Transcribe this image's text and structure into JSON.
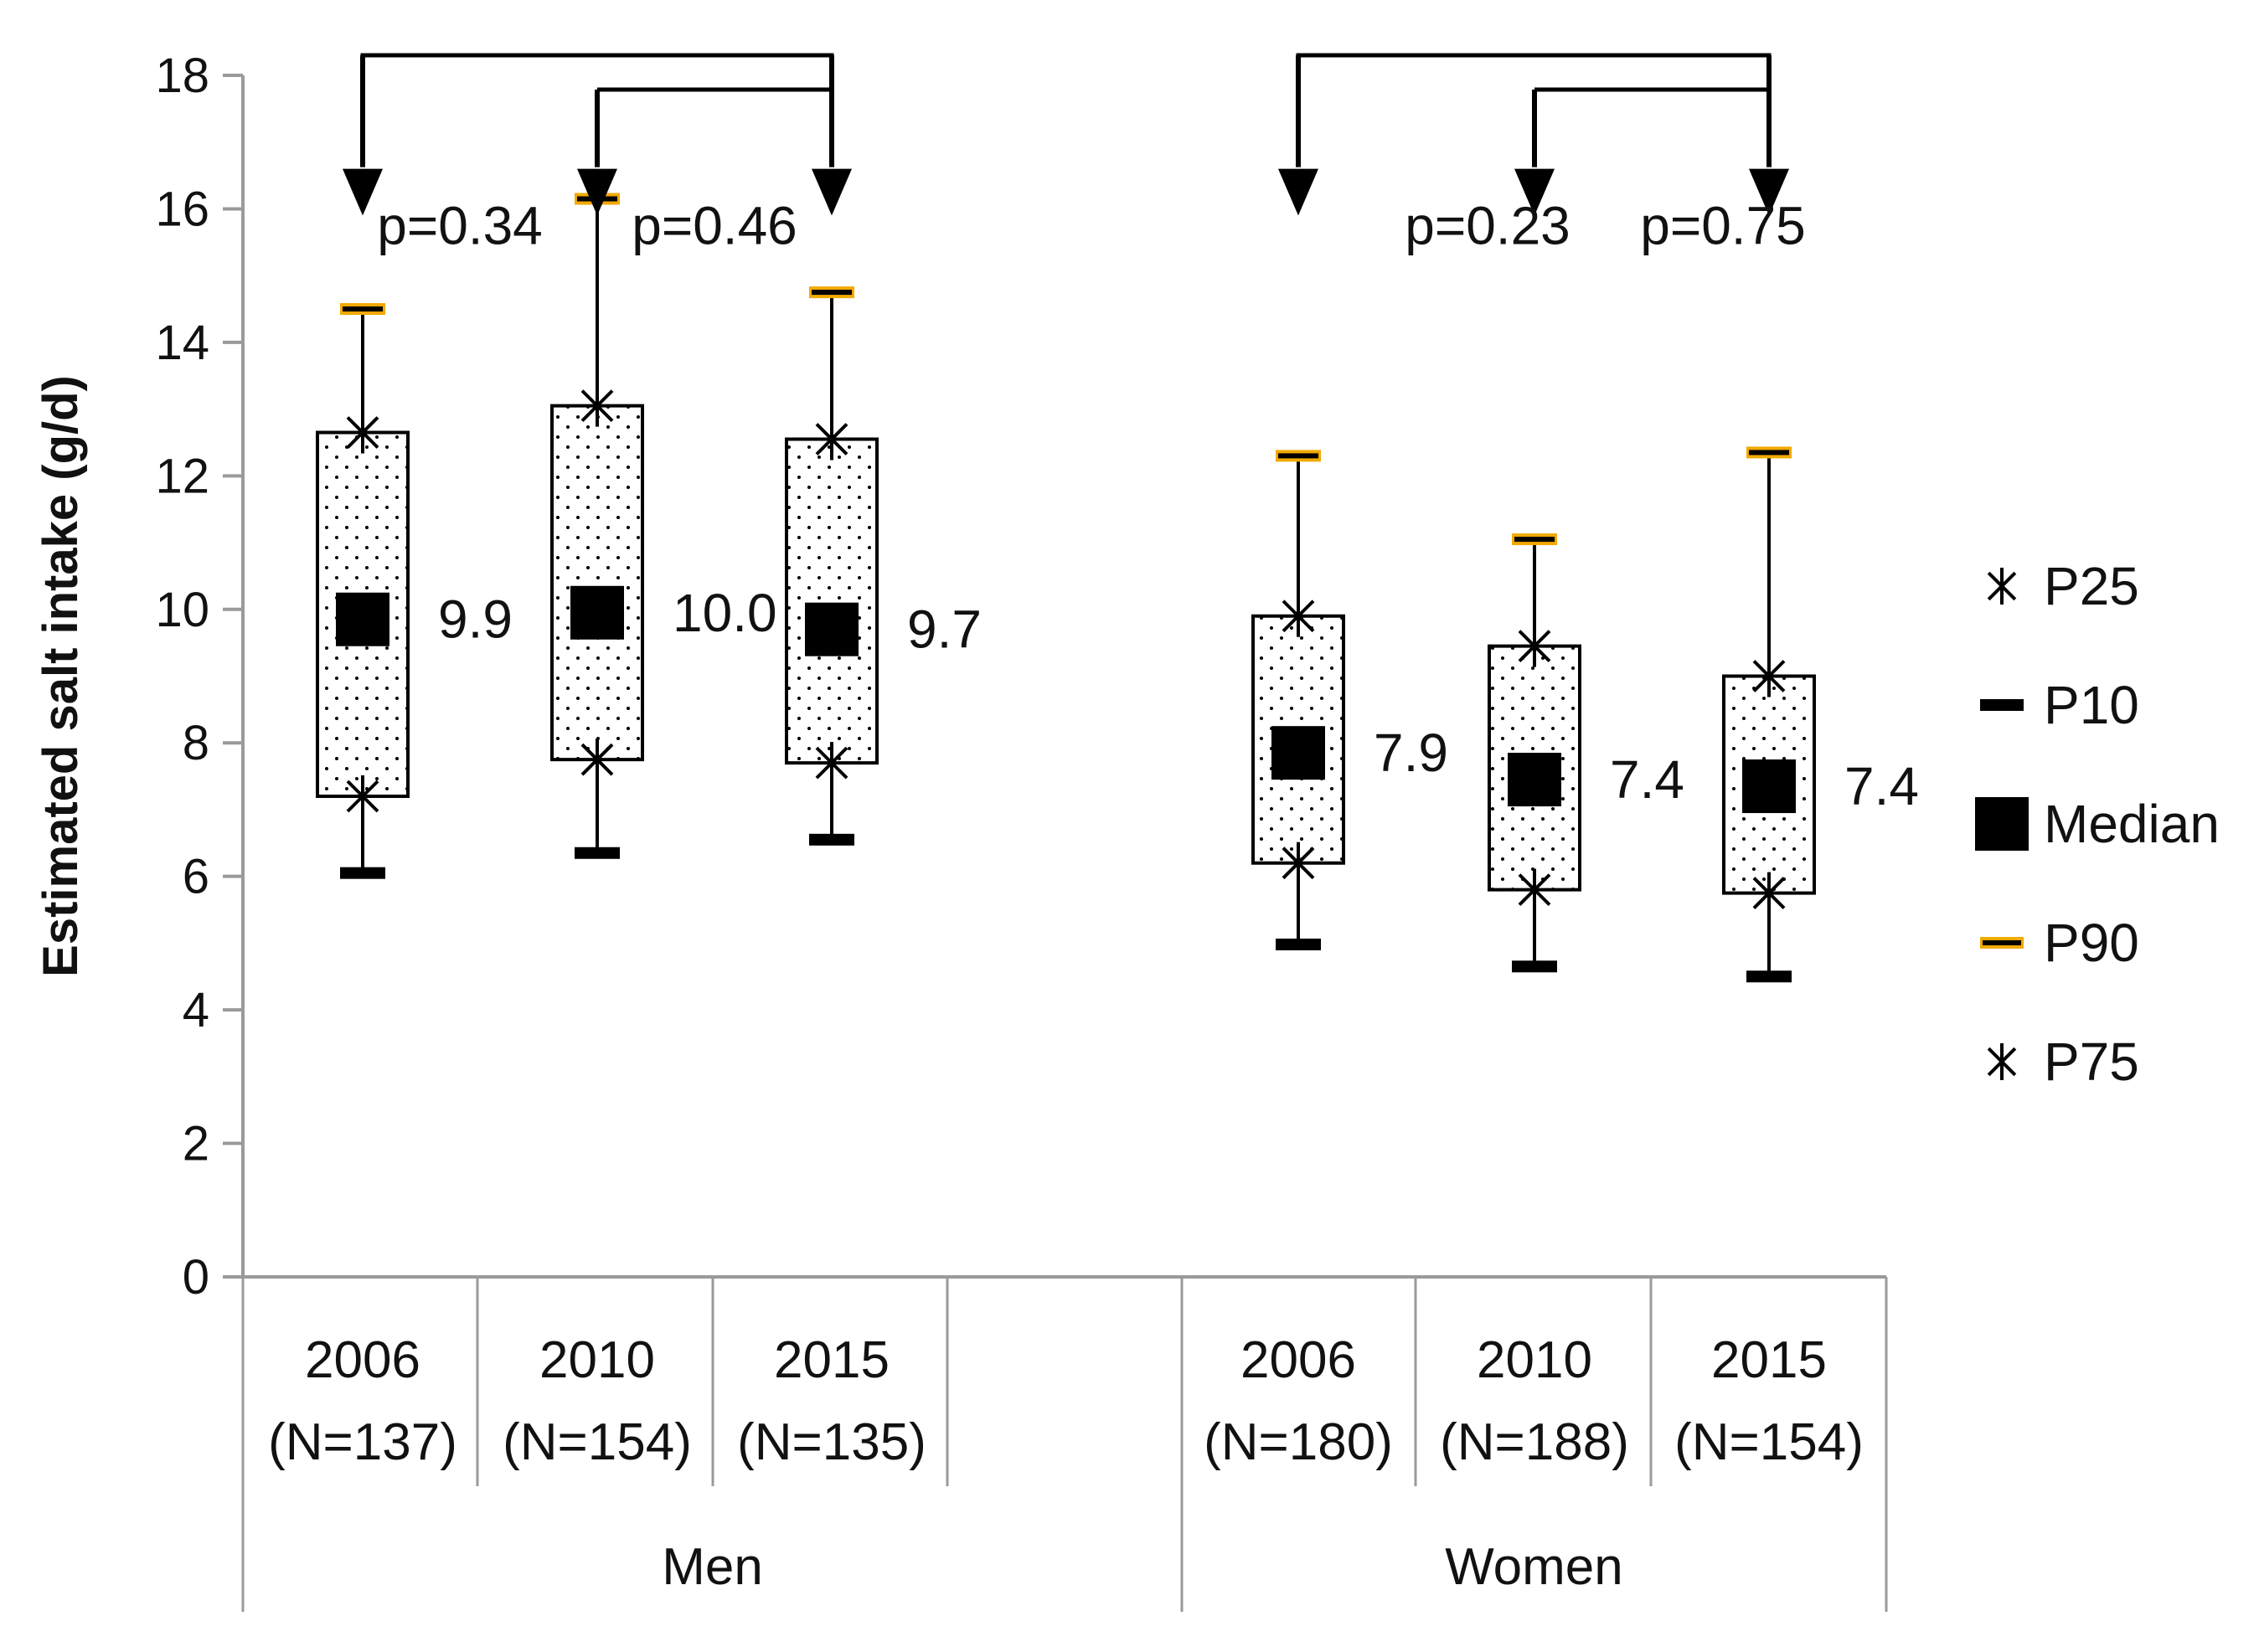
{
  "chart_data": {
    "type": "box",
    "ylabel": "Estimated salt intake (g/d)",
    "ylim": [
      0,
      18
    ],
    "yticks": [
      "0",
      "2",
      "4",
      "6",
      "8",
      "10",
      "12",
      "14",
      "16",
      "18"
    ],
    "grid": false,
    "legend_position": "right",
    "colors": {
      "box_outline": "#000000",
      "whisker": "#000000",
      "p90_marker": "#f2a900",
      "axis": "#9a9a9a",
      "arrow": "#000000"
    },
    "groups": [
      {
        "name": "Men",
        "boxes": [
          {
            "year": "2006",
            "n": "(N=137)",
            "p10": 6.05,
            "p25": 7.2,
            "median": 9.85,
            "p75": 12.65,
            "p90": 14.5,
            "median_label": "9.9"
          },
          {
            "year": "2010",
            "n": "(N=154)",
            "p10": 6.35,
            "p25": 7.75,
            "median": 9.95,
            "p75": 13.05,
            "p90": 16.15,
            "median_label": "10.0"
          },
          {
            "year": "2015",
            "n": "(N=135)",
            "p10": 6.55,
            "p25": 7.7,
            "median": 9.7,
            "p75": 12.55,
            "p90": 14.75,
            "median_label": "9.7"
          }
        ],
        "comparisons": [
          {
            "label": "p=0.34"
          },
          {
            "label": "p=0.46"
          }
        ]
      },
      {
        "name": "Women",
        "boxes": [
          {
            "year": "2006",
            "n": "(N=180)",
            "p10": 4.98,
            "p25": 6.2,
            "median": 7.85,
            "p75": 9.9,
            "p90": 12.3,
            "median_label": "7.9"
          },
          {
            "year": "2010",
            "n": "(N=188)",
            "p10": 4.65,
            "p25": 5.8,
            "median": 7.45,
            "p75": 9.45,
            "p90": 11.05,
            "median_label": "7.4"
          },
          {
            "year": "2015",
            "n": "(N=154)",
            "p10": 4.5,
            "p25": 5.75,
            "median": 7.35,
            "p75": 9.0,
            "p90": 12.35,
            "median_label": "7.4"
          }
        ],
        "comparisons": [
          {
            "label": "p=0.23"
          },
          {
            "label": "p=0.75"
          }
        ]
      }
    ],
    "legend": [
      {
        "key": "p25",
        "label": "P25",
        "marker": "star"
      },
      {
        "key": "p10",
        "label": "P10",
        "marker": "dash"
      },
      {
        "key": "median",
        "label": "Median",
        "marker": "square"
      },
      {
        "key": "p90",
        "label": "P90",
        "marker": "p90-dash"
      },
      {
        "key": "p75",
        "label": "P75",
        "marker": "star"
      }
    ]
  }
}
